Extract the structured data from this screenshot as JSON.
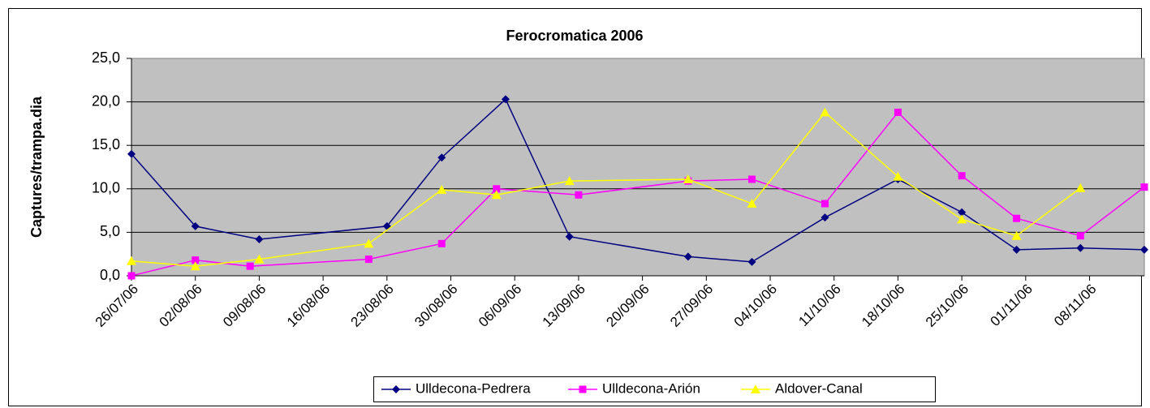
{
  "chart_data": {
    "type": "line",
    "title": "Ferocromatica 2006",
    "y_label": "Captures/trampa.dia",
    "xlim": [
      "26/07/06",
      "14/11/06"
    ],
    "xticks": [
      "26/07/06",
      "02/08/06",
      "09/08/06",
      "16/08/06",
      "23/08/06",
      "30/08/06",
      "06/09/06",
      "13/09/06",
      "20/09/06",
      "27/09/06",
      "04/10/06",
      "11/10/06",
      "18/10/06",
      "25/10/06",
      "01/11/06",
      "08/11/06"
    ],
    "ylim": [
      0,
      25
    ],
    "yticks": [
      {
        "value": 0,
        "label": "0,0"
      },
      {
        "value": 5,
        "label": "5,0"
      },
      {
        "value": 10,
        "label": "10,0"
      },
      {
        "value": 15,
        "label": "15,0"
      },
      {
        "value": 20,
        "label": "20,0"
      },
      {
        "value": 25,
        "label": "25,0"
      }
    ],
    "grid": true,
    "series": [
      {
        "name": "Ulldecona-Pedrera",
        "color": "#000080",
        "marker": "diamond",
        "x": [
          "26/07/06",
          "02/08/06",
          "09/08/06",
          "23/08/06",
          "29/08/06",
          "05/09/06",
          "12/09/06",
          "25/09/06",
          "02/10/06",
          "10/10/06",
          "18/10/06",
          "25/10/06",
          "31/10/06",
          "07/11/06",
          "14/11/06"
        ],
        "values": [
          14.0,
          5.7,
          4.2,
          5.7,
          13.6,
          20.3,
          4.5,
          2.2,
          1.6,
          6.7,
          11.1,
          7.3,
          3.0,
          3.2,
          3.0
        ]
      },
      {
        "name": "Ulldecona-Arión",
        "color": "#ff00ff",
        "marker": "square",
        "x": [
          "26/07/06",
          "02/08/06",
          "08/08/06",
          "21/08/06",
          "29/08/06",
          "04/09/06",
          "13/09/06",
          "25/09/06",
          "02/10/06",
          "10/10/06",
          "18/10/06",
          "25/10/06",
          "31/10/06",
          "07/11/06",
          "14/11/06"
        ],
        "values": [
          0.0,
          1.8,
          1.1,
          1.9,
          3.7,
          10.0,
          9.3,
          10.9,
          11.1,
          8.3,
          18.8,
          11.5,
          6.6,
          4.6,
          10.2
        ]
      },
      {
        "name": "Aldover-Canal",
        "color": "#ffff00",
        "marker": "triangle",
        "x": [
          "26/07/06",
          "02/08/06",
          "09/08/06",
          "21/08/06",
          "29/08/06",
          "04/09/06",
          "12/09/06",
          "25/09/06",
          "02/10/06",
          "10/10/06",
          "18/10/06",
          "25/10/06",
          "31/10/06",
          "07/11/06"
        ],
        "values": [
          1.7,
          1.1,
          1.9,
          3.7,
          9.9,
          9.3,
          10.9,
          11.1,
          8.3,
          18.8,
          11.4,
          6.5,
          4.6,
          10.1
        ]
      }
    ]
  }
}
